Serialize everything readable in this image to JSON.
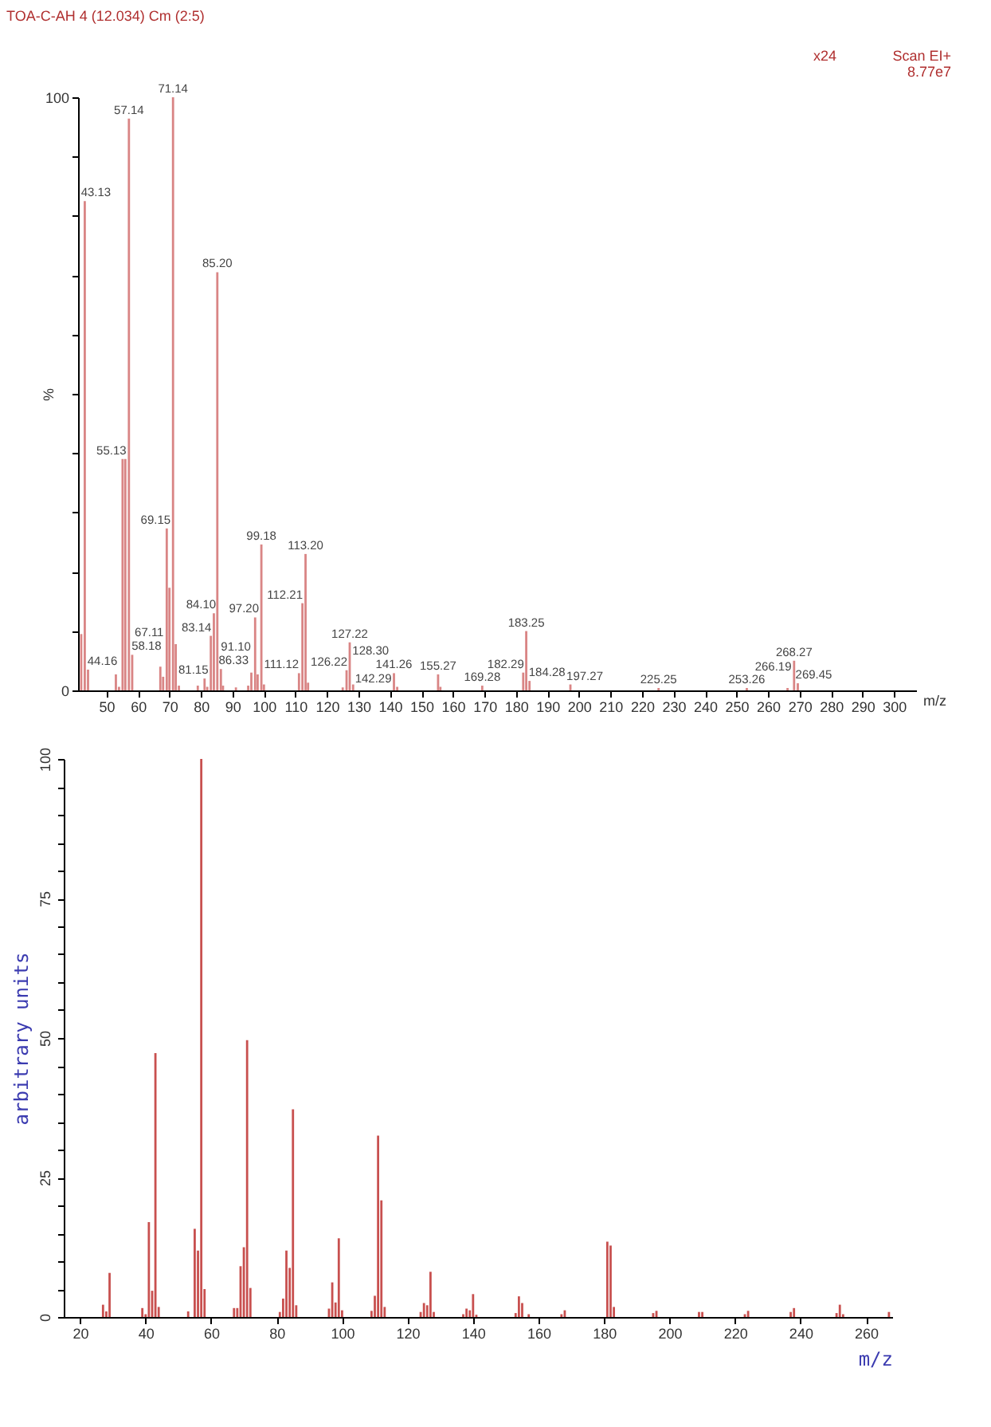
{
  "chart_data": [
    {
      "type": "bar",
      "title": "TOA-C-AH 4 (12.034) Cm (2:5)",
      "xlabel": "m/z",
      "ylabel": "%",
      "color": "#d98585",
      "x": [
        42,
        43.13,
        44.16,
        53,
        54,
        55.13,
        56,
        57.14,
        58.18,
        67.11,
        68,
        69.15,
        70,
        71.14,
        72,
        73,
        79,
        81.15,
        82,
        83.14,
        84.1,
        85.2,
        86.33,
        87,
        91.1,
        95,
        96,
        97.2,
        98,
        99.18,
        100,
        111.12,
        112.21,
        113.2,
        114,
        125,
        126.22,
        127.22,
        128.3,
        141.26,
        142.29,
        155.27,
        156,
        169.28,
        182.29,
        183.25,
        184.28,
        197.27,
        225.25,
        253.26,
        266.19,
        268.27,
        269.45
      ],
      "values": [
        9.5,
        82.5,
        3.5,
        2.7,
        0.6,
        39,
        39,
        96.4,
        6,
        4,
        2.3,
        27.3,
        17.3,
        100,
        7.8,
        0.8,
        0.8,
        2,
        0.6,
        9.2,
        13,
        70.5,
        3.6,
        0.8,
        0.5,
        0.8,
        3,
        12.3,
        2.7,
        24.6,
        1,
        2.9,
        14.7,
        23,
        1.3,
        0.5,
        3.4,
        8.1,
        1,
        2.9,
        0.6,
        2.7,
        0.6,
        0.8,
        3,
        10,
        1.6,
        1,
        0.4,
        0.4,
        0.4,
        5,
        1.2
      ],
      "xlim": [
        41,
        307
      ],
      "xticks": [
        50,
        60,
        70,
        80,
        90,
        100,
        110,
        120,
        130,
        140,
        150,
        160,
        170,
        180,
        190,
        200,
        210,
        220,
        230,
        240,
        250,
        260,
        270,
        280,
        290,
        300
      ],
      "ylim": [
        0,
        100
      ],
      "yticks": [
        0,
        {
          "value": 10,
          "label": null
        },
        {
          "value": 20,
          "label": null
        },
        {
          "value": 30,
          "label": null
        },
        {
          "value": 40,
          "label": null
        },
        {
          "value": 50,
          "label": null
        },
        {
          "value": 60,
          "label": null
        },
        {
          "value": 70,
          "label": null
        },
        {
          "value": 80,
          "label": null
        },
        {
          "value": 90,
          "label": null
        },
        100
      ],
      "annotations": [
        "Scan EI+",
        "8.77e7",
        "x24",
        {
          "text": "43.13",
          "x": 43.13,
          "y": 82.5
        },
        {
          "text": "44.16",
          "x": 44.16,
          "y": 3.5
        },
        {
          "text": "55.13",
          "x": 55.13,
          "y": 39
        },
        {
          "text": "57.14",
          "x": 57.14,
          "y": 96.4
        },
        {
          "text": "58.18",
          "x": 58.18,
          "y": 6
        },
        {
          "text": "67.11",
          "x": 67.11,
          "y": 4
        },
        {
          "text": "69.15",
          "x": 69.15,
          "y": 27.3
        },
        {
          "text": "71.14",
          "x": 71.14,
          "y": 100
        },
        {
          "text": "81.15",
          "x": 81.15,
          "y": 2
        },
        {
          "text": "83.14",
          "x": 83.14,
          "y": 9.2
        },
        {
          "text": "84.10",
          "x": 84.1,
          "y": 13
        },
        {
          "text": "85.20",
          "x": 85.2,
          "y": 70.5
        },
        {
          "text": "86.33",
          "x": 86.33,
          "y": 3.6
        },
        {
          "text": "91.10",
          "x": 91.1,
          "y": 0.5
        },
        {
          "text": "97.20",
          "x": 97.2,
          "y": 12.3
        },
        {
          "text": "99.18",
          "x": 99.18,
          "y": 24.6
        },
        {
          "text": "111.12",
          "x": 111.12,
          "y": 2.9
        },
        {
          "text": "112.21",
          "x": 112.21,
          "y": 14.7
        },
        {
          "text": "113.20",
          "x": 113.2,
          "y": 23
        },
        {
          "text": "126.22",
          "x": 126.22,
          "y": 3.4
        },
        {
          "text": "127.22",
          "x": 127.22,
          "y": 8.1
        },
        {
          "text": "128.30",
          "x": 128.3,
          "y": 1
        },
        {
          "text": "141.26",
          "x": 141.26,
          "y": 2.9
        },
        {
          "text": "142.29",
          "x": 142.29,
          "y": 0.6
        },
        {
          "text": "155.27",
          "x": 155.27,
          "y": 2.7
        },
        {
          "text": "169.28",
          "x": 169.28,
          "y": 0.8
        },
        {
          "text": "182.29",
          "x": 182.29,
          "y": 3
        },
        {
          "text": "183.25",
          "x": 183.25,
          "y": 10
        },
        {
          "text": "184.28",
          "x": 184.28,
          "y": 1.6
        },
        {
          "text": "197.27",
          "x": 197.27,
          "y": 1
        },
        {
          "text": "225.25",
          "x": 225.25,
          "y": 0.4
        },
        {
          "text": "253.26",
          "x": 253.26,
          "y": 0.4
        },
        {
          "text": "266.19",
          "x": 266.19,
          "y": 0.4
        },
        {
          "text": "268.27",
          "x": 268.27,
          "y": 5
        },
        {
          "text": "269.45",
          "x": 269.45,
          "y": 1.2
        }
      ]
    },
    {
      "type": "bar",
      "xlabel": "m/z",
      "ylabel": "arbitrary units",
      "color": "#c8504f",
      "x": [
        27,
        28,
        29,
        39,
        40,
        41,
        42,
        43,
        44,
        53,
        55,
        56,
        57,
        58,
        67,
        68,
        69,
        70,
        71,
        72,
        81,
        82,
        83,
        84,
        85,
        86,
        96,
        97,
        98,
        99,
        100,
        109,
        110,
        111,
        112,
        113,
        124,
        125,
        126,
        127,
        128,
        137,
        138,
        139,
        140,
        141,
        153,
        154,
        155,
        157,
        167,
        168,
        181,
        182,
        183,
        195,
        196,
        209,
        210,
        223,
        224,
        237,
        238,
        251,
        252,
        253,
        267
      ],
      "values": [
        2.2,
        1,
        7.9,
        1.6,
        0.5,
        17,
        4.7,
        47.3,
        1.8,
        1,
        15.8,
        11.9,
        100,
        5,
        1.6,
        1.6,
        9.1,
        12.5,
        49.6,
        5.2,
        0.9,
        3.3,
        11.9,
        8.8,
        37.2,
        2.1,
        1.5,
        6.2,
        2.6,
        14.1,
        1.2,
        1.1,
        3.8,
        32.5,
        20.9,
        1.8,
        0.9,
        2.5,
        2.1,
        8.1,
        0.9,
        0.5,
        1.5,
        1.2,
        4.1,
        0.4,
        0.7,
        3.7,
        2.5,
        0.5,
        0.5,
        1.2,
        13.5,
        12.8,
        1.8,
        0.7,
        1.1,
        0.9,
        0.9,
        0.5,
        1.1,
        0.9,
        1.6,
        0.7,
        2.2,
        0.5,
        0.9
      ],
      "xlim": [
        15,
        268
      ],
      "xticks": [
        20,
        40,
        60,
        80,
        100,
        120,
        140,
        160,
        180,
        200,
        220,
        240,
        260
      ],
      "ylim": [
        0,
        100
      ],
      "yticks": [
        0,
        {
          "value": 5,
          "label": null
        },
        {
          "value": 10,
          "label": null
        },
        {
          "value": 15,
          "label": null
        },
        {
          "value": 20,
          "label": null
        },
        25,
        {
          "value": 30,
          "label": null
        },
        {
          "value": 35,
          "label": null
        },
        {
          "value": 40,
          "label": null
        },
        {
          "value": 45,
          "label": null
        },
        50,
        {
          "value": 55,
          "label": null
        },
        {
          "value": 60,
          "label": null
        },
        {
          "value": 65,
          "label": null
        },
        {
          "value": 70,
          "label": null
        },
        75,
        {
          "value": 80,
          "label": null
        },
        {
          "value": 85,
          "label": null
        },
        {
          "value": 90,
          "label": null
        },
        {
          "value": 95,
          "label": null
        },
        100
      ]
    }
  ]
}
